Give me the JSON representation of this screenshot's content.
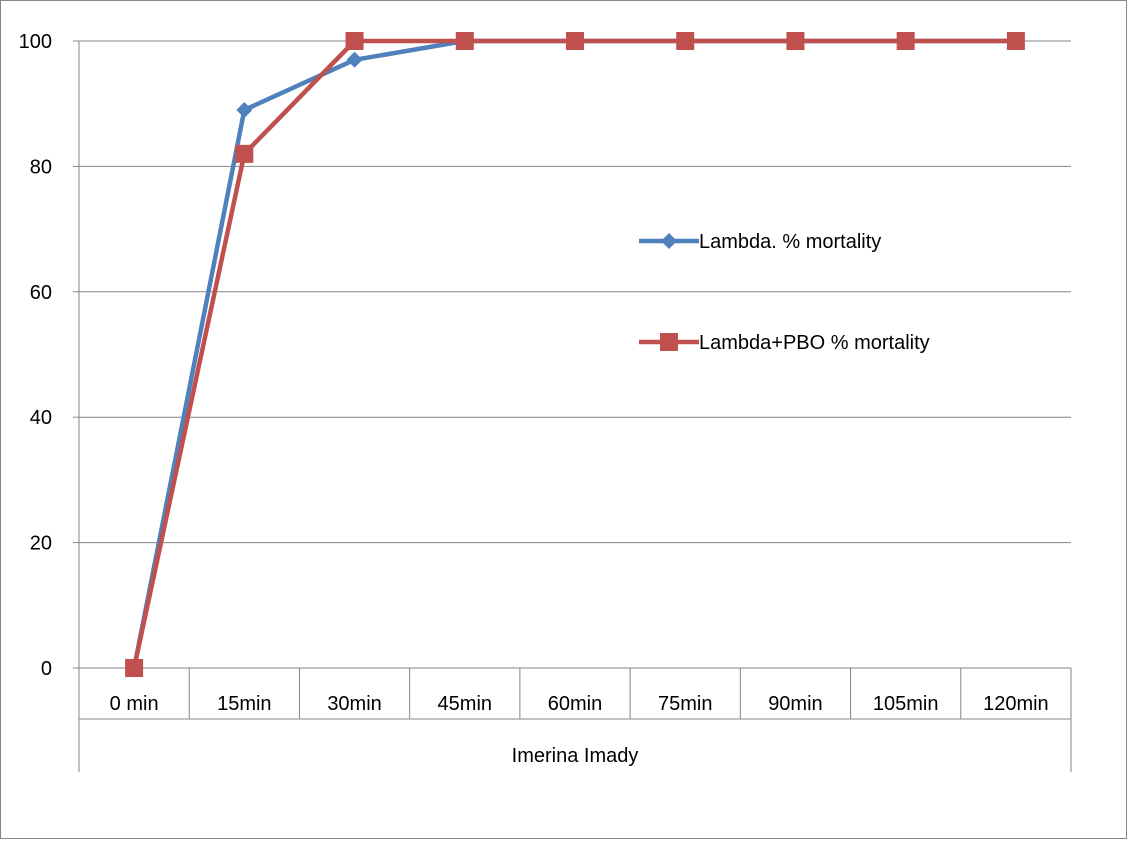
{
  "chart_data": {
    "type": "line",
    "categories": [
      "0 min",
      "15min",
      "30min",
      "45min",
      "60min",
      "75min",
      "90min",
      "105min",
      "120min"
    ],
    "group_label": "Imerina Imady",
    "series": [
      {
        "name": "Lambda. % mortality",
        "values": [
          0,
          89,
          97,
          100,
          100,
          100,
          100,
          100,
          100
        ],
        "color": "#4F81BD",
        "marker": "diamond"
      },
      {
        "name": "Lambda+PBO % mortality",
        "values": [
          0,
          82,
          100,
          100,
          100,
          100,
          100,
          100,
          100
        ],
        "color": "#C0504D",
        "marker": "square"
      }
    ],
    "ylim": [
      0,
      100
    ],
    "yticks": [
      0,
      20,
      40,
      60,
      80,
      100
    ],
    "grid": true,
    "legend_position": "right"
  }
}
